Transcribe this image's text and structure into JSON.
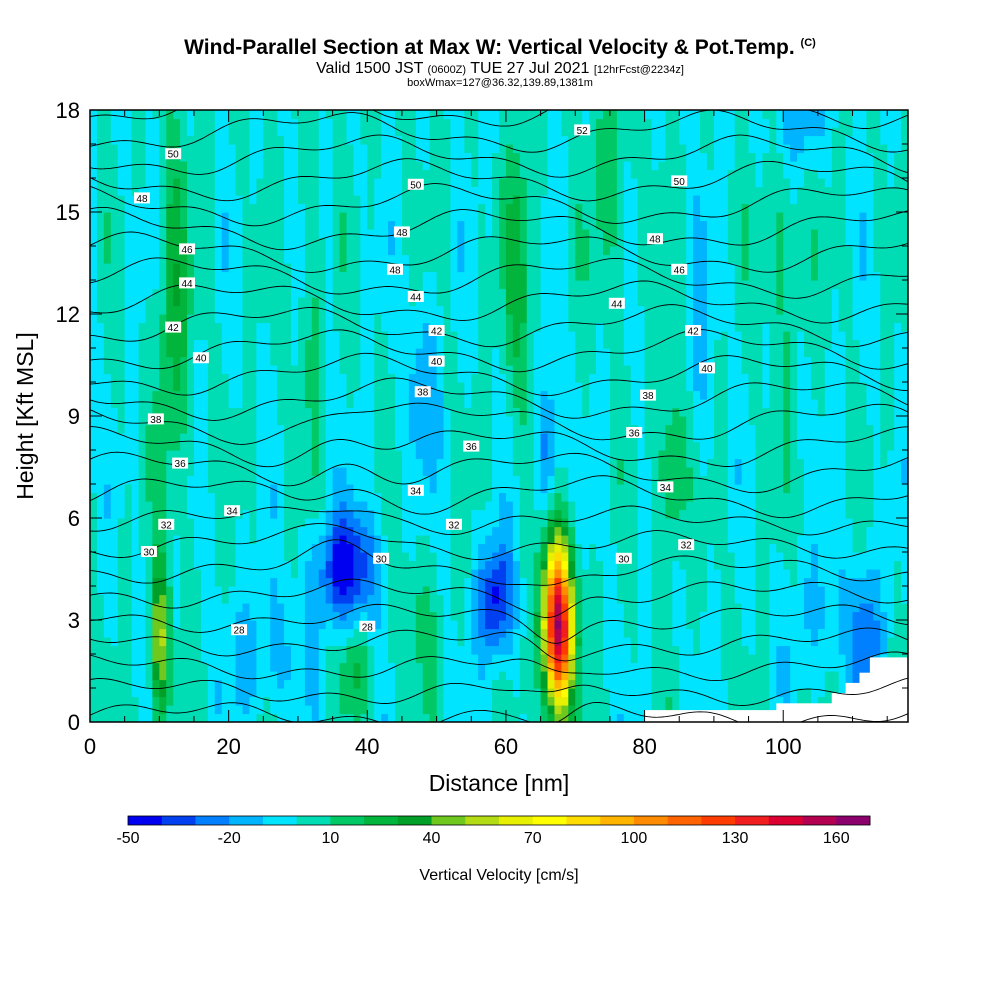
{
  "header": {
    "title": "Wind-Parallel Section at Max W: Vertical Velocity & Pot.Temp.",
    "copyright": "(C)",
    "valid_prefix": "Valid 1500 JST",
    "valid_z": "(0600Z)",
    "valid_date": "TUE 27 Jul 2021",
    "valid_fcst": "[12hrFcst@2234z]",
    "box_info": "boxWmax=127@36.32,139.89,1381m"
  },
  "chart_data": {
    "type": "heatmap",
    "xlabel": "Distance [nm]",
    "ylabel": "Height [Kft MSL]",
    "xlim": [
      0,
      118
    ],
    "ylim": [
      0,
      18
    ],
    "x_ticks": [
      0,
      20,
      40,
      60,
      80,
      100
    ],
    "y_ticks": [
      0,
      3,
      6,
      9,
      12,
      15,
      18
    ],
    "colorbar": {
      "label": "Vertical Velocity [cm/s]",
      "min": -50,
      "max": 170,
      "step": 10,
      "tick_labels": [
        "-50",
        "-20",
        "10",
        "40",
        "70",
        "100",
        "130",
        "160"
      ],
      "colors": [
        "#0000f0",
        "#0040f0",
        "#0080ff",
        "#00b4ff",
        "#00e4ff",
        "#00dcb4",
        "#00c864",
        "#00b43c",
        "#00a028",
        "#6ec81e",
        "#b4dc14",
        "#e6f000",
        "#ffff00",
        "#ffdc00",
        "#ffb400",
        "#ff8c00",
        "#ff6400",
        "#ff3c00",
        "#f01e1e",
        "#dc0032",
        "#b40050",
        "#8c006e"
      ]
    },
    "background_value": 0,
    "features": [
      {
        "x": 10,
        "y": 2.4,
        "sx": 0.9,
        "sy": 1.6,
        "w": 55
      },
      {
        "x": 37,
        "y": 4.5,
        "sx": 3.2,
        "sy": 1.2,
        "w": -45
      },
      {
        "x": 58.5,
        "y": 3.6,
        "sx": 1.8,
        "sy": 1.2,
        "w": -45
      },
      {
        "x": 67.5,
        "y": 2.8,
        "sx": 1.5,
        "sy": 1.7,
        "w": 160
      },
      {
        "x": 66,
        "y": 8.0,
        "sx": 1.1,
        "sy": 1.5,
        "w": -30
      },
      {
        "x": 25,
        "y": 2.0,
        "sx": 4.0,
        "sy": 1.4,
        "w": -15
      },
      {
        "x": 47,
        "y": 3.0,
        "sx": 2.4,
        "sy": 1.5,
        "w": 12
      },
      {
        "x": 38,
        "y": 1.6,
        "sx": 1.5,
        "sy": 1.0,
        "w": 20
      },
      {
        "x": 84,
        "y": 7.5,
        "sx": 1.4,
        "sy": 1.6,
        "w": 28
      },
      {
        "x": 112,
        "y": 2.5,
        "sx": 1.5,
        "sy": 1.6,
        "w": -25
      },
      {
        "x": 106,
        "y": 3.0,
        "sx": 4.0,
        "sy": 1.4,
        "w": -12
      },
      {
        "x": 62,
        "y": 13.0,
        "sx": 1.6,
        "sy": 3.0,
        "w": 22
      },
      {
        "x": 12,
        "y": 12.0,
        "sx": 1.6,
        "sy": 4.0,
        "w": 25
      },
      {
        "x": 48,
        "y": 10.0,
        "sx": 1.8,
        "sy": 1.8,
        "w": -18
      },
      {
        "x": 88,
        "y": 11.0,
        "sx": 1.5,
        "sy": 2.5,
        "w": -12
      },
      {
        "x": 100,
        "y": 14.0,
        "sx": 2.0,
        "sy": 3.0,
        "w": 14
      },
      {
        "x": 75,
        "y": 16.0,
        "sx": 2.0,
        "sy": 2.5,
        "w": 15
      },
      {
        "x": 32,
        "y": 12.0,
        "sx": 1.5,
        "sy": 3.0,
        "w": 12
      },
      {
        "x": 102,
        "y": 17.5,
        "sx": 2.5,
        "sy": 1.0,
        "w": -20
      }
    ],
    "terrain_mask": [
      {
        "x0": 80,
        "x1": 99,
        "top": 0.35
      },
      {
        "x0": 99,
        "x1": 107,
        "top": 0.55
      },
      {
        "x0": 107,
        "x1": 109,
        "top": 0.85
      },
      {
        "x0": 109,
        "x1": 111,
        "top": 1.15
      },
      {
        "x0": 111,
        "x1": 112.5,
        "top": 1.45
      },
      {
        "x0": 112.5,
        "x1": 118,
        "top": 1.9
      }
    ],
    "theta_contours": {
      "levels_from": 27,
      "levels_to": 53,
      "labels": [
        {
          "text": "52",
          "x": 71,
          "y": 17.4
        },
        {
          "text": "50",
          "x": 12,
          "y": 16.7
        },
        {
          "text": "50",
          "x": 47,
          "y": 15.8
        },
        {
          "text": "50",
          "x": 85,
          "y": 15.9
        },
        {
          "text": "48",
          "x": 7.5,
          "y": 15.4
        },
        {
          "text": "48",
          "x": 45,
          "y": 14.4
        },
        {
          "text": "48",
          "x": 81.5,
          "y": 14.2
        },
        {
          "text": "48",
          "x": 44,
          "y": 13.3
        },
        {
          "text": "46",
          "x": 14,
          "y": 13.9
        },
        {
          "text": "46",
          "x": 85,
          "y": 13.3
        },
        {
          "text": "44",
          "x": 14,
          "y": 12.9
        },
        {
          "text": "44",
          "x": 47,
          "y": 12.5
        },
        {
          "text": "44",
          "x": 76,
          "y": 12.3
        },
        {
          "text": "42",
          "x": 12,
          "y": 11.6
        },
        {
          "text": "42",
          "x": 50,
          "y": 11.5
        },
        {
          "text": "42",
          "x": 87,
          "y": 11.5
        },
        {
          "text": "40",
          "x": 16,
          "y": 10.7
        },
        {
          "text": "40",
          "x": 50,
          "y": 10.6
        },
        {
          "text": "40",
          "x": 89,
          "y": 10.4
        },
        {
          "text": "38",
          "x": 48,
          "y": 9.7
        },
        {
          "text": "38",
          "x": 80.5,
          "y": 9.6
        },
        {
          "text": "38",
          "x": 9.5,
          "y": 8.9
        },
        {
          "text": "36",
          "x": 55,
          "y": 8.1
        },
        {
          "text": "36",
          "x": 78.5,
          "y": 8.5
        },
        {
          "text": "36",
          "x": 13,
          "y": 7.6
        },
        {
          "text": "34",
          "x": 47,
          "y": 6.8
        },
        {
          "text": "34",
          "x": 83,
          "y": 6.9
        },
        {
          "text": "34",
          "x": 20.5,
          "y": 6.2
        },
        {
          "text": "32",
          "x": 11,
          "y": 5.8
        },
        {
          "text": "32",
          "x": 52.5,
          "y": 5.8
        },
        {
          "text": "32",
          "x": 86,
          "y": 5.2
        },
        {
          "text": "30",
          "x": 8.5,
          "y": 5.0
        },
        {
          "text": "30",
          "x": 42,
          "y": 4.8
        },
        {
          "text": "30",
          "x": 77,
          "y": 4.8
        },
        {
          "text": "28",
          "x": 21.5,
          "y": 2.7
        },
        {
          "text": "28",
          "x": 40,
          "y": 2.8
        }
      ]
    }
  }
}
